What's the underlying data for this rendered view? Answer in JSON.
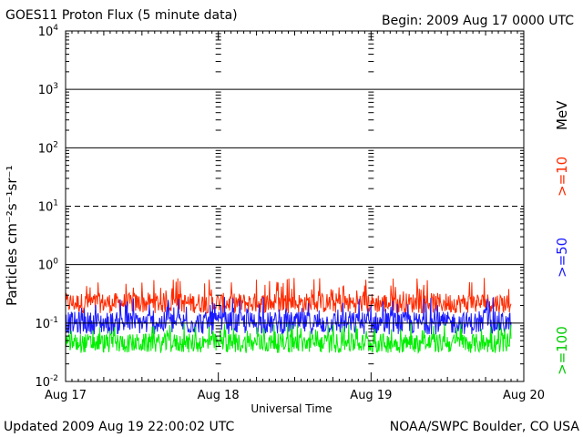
{
  "title": "GOES11 Proton Flux (5 minute data)",
  "begin_label": "Begin: 2009 Aug 17 0000 UTC",
  "updated_label": "Updated 2009 Aug 19 22:00:02 UTC",
  "credit": "NOAA/SWPC Boulder, CO USA",
  "colors": {
    "ge10": "#ff2a00",
    "ge50": "#1a1aff",
    "ge100": "#00ee00"
  },
  "chart_data": {
    "type": "line",
    "xlabel": "Universal Time",
    "ylabel": "Particles cm⁻²s⁻¹sr⁻¹",
    "y_scale": "log",
    "ylim": [
      0.01,
      10000
    ],
    "xlim": [
      "2009-08-17",
      "2009-08-20"
    ],
    "x_ticks": [
      "Aug 17",
      "Aug 18",
      "Aug 19",
      "Aug 20"
    ],
    "y_ticks": [
      {
        "base": "10",
        "exp": "-2",
        "value": 0.01
      },
      {
        "base": "10",
        "exp": "-1",
        "value": 0.1
      },
      {
        "base": "10",
        "exp": "0",
        "value": 1
      },
      {
        "base": "10",
        "exp": "1",
        "value": 10
      },
      {
        "base": "10",
        "exp": "2",
        "value": 100
      },
      {
        "base": "10",
        "exp": "3",
        "value": 1000
      },
      {
        "base": "10",
        "exp": "4",
        "value": 10000
      }
    ],
    "unit_label": "MeV",
    "series": [
      {
        "name": ">=10",
        "typical": 0.22,
        "min": 0.14,
        "max": 0.6,
        "x_start": "2009-08-17",
        "x_end": "2009-08-19 22:00"
      },
      {
        "name": ">=50",
        "typical": 0.1,
        "min": 0.055,
        "max": 0.28,
        "x_start": "2009-08-17",
        "x_end": "2009-08-19 22:00"
      },
      {
        "name": ">=100",
        "typical": 0.045,
        "min": 0.025,
        "max": 0.1,
        "x_start": "2009-08-17",
        "x_end": "2009-08-19 22:00"
      }
    ]
  }
}
